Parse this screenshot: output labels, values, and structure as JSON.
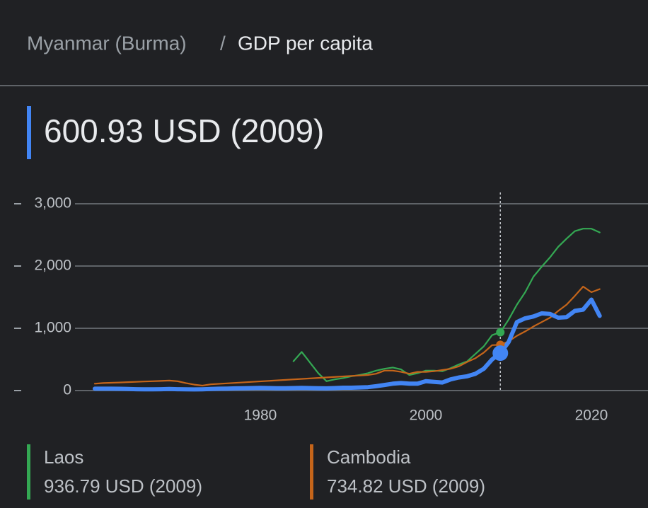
{
  "header": {
    "separator": "/"
  },
  "chart_data": {
    "type": "line",
    "title": "GDP per capita",
    "highlight_x": 2009,
    "xlim": [
      1950,
      2026.5
    ],
    "xticks": [
      1980,
      2000,
      2020
    ],
    "ylim": [
      -100,
      3200
    ],
    "yticks": [
      0,
      {
        "value": 1000,
        "label": "1,000"
      },
      {
        "value": 2000,
        "label": "2,000"
      },
      {
        "value": 3000,
        "label": "3,000"
      }
    ],
    "grid": true,
    "series": [
      {
        "name": "Myanmar (Burma)",
        "color": "#4285f4",
        "highlight_value": 600.93,
        "highlight_label": "600.93 USD (2009)",
        "x": [
          1960,
          1961,
          1962,
          1963,
          1964,
          1965,
          1966,
          1967,
          1968,
          1969,
          1970,
          1971,
          1972,
          1973,
          1974,
          1975,
          1976,
          1977,
          1978,
          1979,
          1980,
          1981,
          1982,
          1983,
          1984,
          1985,
          1986,
          1987,
          1988,
          1989,
          1990,
          1991,
          1992,
          1993,
          1994,
          1995,
          1996,
          1997,
          1998,
          1999,
          2000,
          2001,
          2002,
          2003,
          2004,
          2005,
          2006,
          2007,
          2008,
          2009,
          2010,
          2011,
          2012,
          2013,
          2014,
          2015,
          2016,
          2017,
          2018,
          2019,
          2020,
          2021
        ],
        "values": [
          30,
          30,
          30,
          28,
          25,
          22,
          20,
          20,
          22,
          25,
          22,
          20,
          18,
          20,
          25,
          30,
          32,
          35,
          38,
          40,
          42,
          40,
          38,
          38,
          40,
          42,
          40,
          38,
          35,
          40,
          45,
          45,
          50,
          55,
          70,
          90,
          110,
          120,
          110,
          110,
          150,
          140,
          130,
          180,
          210,
          230,
          270,
          350,
          500,
          600.93,
          780,
          1100,
          1160,
          1190,
          1240,
          1230,
          1170,
          1180,
          1280,
          1300,
          1460,
          1200
        ]
      },
      {
        "name": "Laos",
        "color": "#34a853",
        "highlight_value": 936.79,
        "highlight_label": "936.79 USD (2009)",
        "x": [
          1984,
          1985,
          1986,
          1987,
          1988,
          1989,
          1990,
          1991,
          1992,
          1993,
          1994,
          1995,
          1996,
          1997,
          1998,
          1999,
          2000,
          2001,
          2002,
          2003,
          2004,
          2005,
          2006,
          2007,
          2008,
          2009,
          2010,
          2011,
          2012,
          2013,
          2014,
          2015,
          2016,
          2017,
          2018,
          2019,
          2020,
          2021
        ],
        "values": [
          470,
          620,
          450,
          280,
          150,
          180,
          200,
          230,
          250,
          280,
          320,
          350,
          370,
          340,
          250,
          280,
          320,
          320,
          310,
          360,
          420,
          470,
          590,
          710,
          890,
          936.79,
          1140,
          1380,
          1580,
          1830,
          1990,
          2140,
          2310,
          2440,
          2560,
          2600,
          2600,
          2540
        ]
      },
      {
        "name": "Cambodia",
        "color": "#c5651a",
        "highlight_value": 734.82,
        "highlight_label": "734.82 USD (2009)",
        "x": [
          1960,
          1961,
          1962,
          1963,
          1964,
          1965,
          1966,
          1967,
          1968,
          1969,
          1970,
          1971,
          1972,
          1973,
          1974,
          1993,
          1994,
          1995,
          1996,
          1997,
          1998,
          1999,
          2000,
          2001,
          2002,
          2003,
          2004,
          2005,
          2006,
          2007,
          2008,
          2009,
          2010,
          2011,
          2012,
          2013,
          2014,
          2015,
          2016,
          2017,
          2018,
          2019,
          2020,
          2021
        ],
        "values": [
          110,
          120,
          125,
          130,
          135,
          140,
          145,
          150,
          155,
          160,
          150,
          120,
          95,
          80,
          100,
          250,
          270,
          320,
          320,
          300,
          270,
          300,
          300,
          310,
          330,
          350,
          390,
          460,
          520,
          610,
          730,
          734.82,
          790,
          880,
          950,
          1030,
          1100,
          1170,
          1280,
          1380,
          1520,
          1670,
          1580,
          1630
        ]
      }
    ]
  }
}
